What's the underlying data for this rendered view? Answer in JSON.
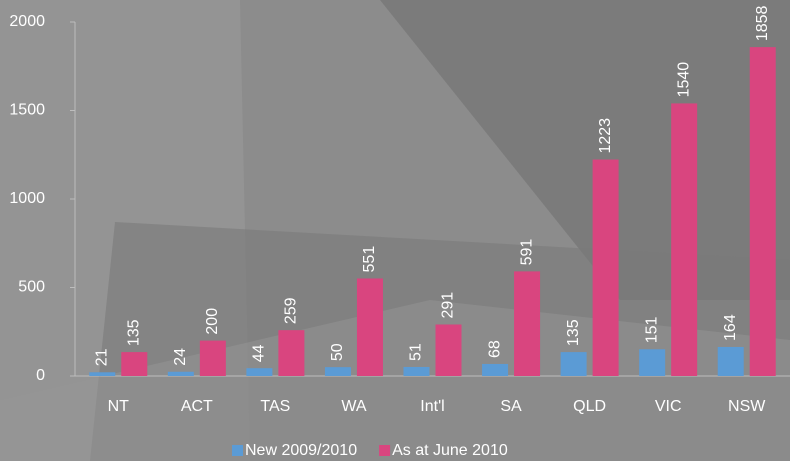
{
  "chart_data": {
    "type": "bar",
    "categories": [
      "NT",
      "ACT",
      "TAS",
      "WA",
      "Int'l",
      "SA",
      "QLD",
      "VIC",
      "NSW"
    ],
    "series": [
      {
        "name": "New 2009/2010",
        "color": "#5b9bd5",
        "values": [
          21,
          24,
          44,
          50,
          51,
          68,
          135,
          151,
          164
        ]
      },
      {
        "name": "As at June 2010",
        "color": "#d9457f",
        "values": [
          135,
          200,
          259,
          551,
          291,
          591,
          1223,
          1540,
          1858
        ]
      }
    ],
    "ylim": [
      0,
      2000
    ],
    "yticks": [
      0,
      500,
      1000,
      1500,
      2000
    ],
    "legend": "bottom"
  }
}
